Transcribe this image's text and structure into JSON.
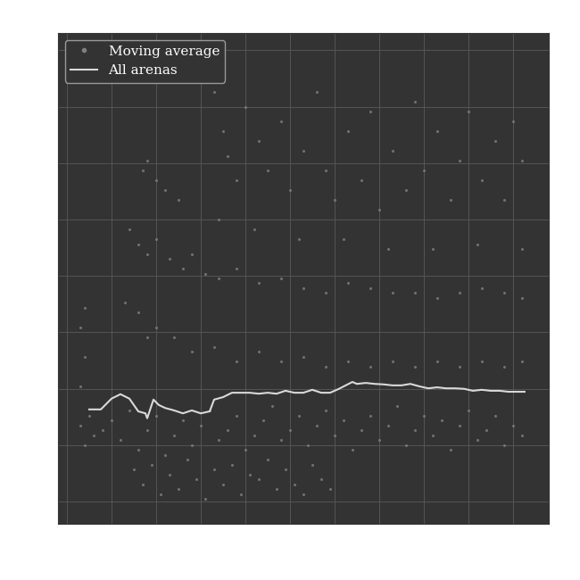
{
  "chart_data": {
    "type": "scatter",
    "xlim": [
      0,
      110
    ],
    "xticks": [
      2,
      12,
      22,
      32,
      42,
      52,
      62,
      72,
      82,
      92,
      102
    ],
    "ylim": [
      0,
      100
    ],
    "yticks": [
      4.5,
      16,
      27.5,
      39,
      50.5,
      62,
      73.5,
      85,
      96.5
    ],
    "grid": true,
    "tick_labels": false,
    "legend": "upper left",
    "series": [
      {
        "name": "Moving average",
        "type": "scatter",
        "color": "#808080",
        "marker": "o",
        "x": [
          5,
          6,
          7,
          8,
          10,
          12,
          14,
          16,
          18,
          20,
          22,
          24,
          26,
          28,
          30,
          32,
          34,
          36,
          38,
          40,
          42,
          44,
          46,
          48,
          50,
          52,
          54,
          56,
          58,
          60,
          62,
          64,
          66,
          68,
          70,
          72,
          74,
          76,
          78,
          80,
          82,
          84,
          86,
          88,
          90,
          92,
          94,
          96,
          98,
          100,
          102,
          104,
          17,
          19,
          21,
          23,
          25,
          27,
          29,
          31,
          33,
          35,
          37,
          39,
          41,
          43,
          45,
          47,
          49,
          51,
          53,
          55,
          57,
          59,
          61,
          20,
          30,
          40,
          50,
          60,
          70,
          80,
          90,
          100,
          104,
          15,
          18,
          22,
          26,
          35,
          45,
          55,
          65,
          75,
          85,
          95,
          5,
          6,
          5,
          6,
          16,
          18,
          20,
          22,
          25,
          28,
          30,
          33,
          36,
          40,
          45,
          50,
          55,
          60,
          65,
          70,
          75,
          80,
          85,
          90,
          95,
          100,
          104,
          20,
          22,
          19,
          24,
          27,
          35,
          37,
          38,
          40,
          42,
          45,
          47,
          50,
          52,
          55,
          58,
          60,
          62,
          65,
          68,
          70,
          72,
          75,
          78,
          80,
          82,
          85,
          88,
          90,
          92,
          95,
          98,
          100,
          102,
          104,
          36,
          44,
          54,
          64,
          74,
          84,
          94,
          104
        ],
        "values": [
          20,
          16,
          22,
          18,
          19,
          21,
          17,
          23,
          15,
          19,
          22,
          14,
          18,
          21,
          16,
          20,
          23,
          17,
          19,
          22,
          15,
          18,
          21,
          24,
          17,
          19,
          22,
          16,
          20,
          23,
          18,
          21,
          15,
          19,
          22,
          17,
          20,
          24,
          16,
          19,
          22,
          18,
          21,
          15,
          20,
          23,
          17,
          19,
          22,
          16,
          20,
          18,
          11,
          8,
          12,
          6,
          10,
          7,
          13,
          9,
          5,
          11,
          8,
          12,
          6,
          10,
          9,
          13,
          7,
          11,
          8,
          6,
          12,
          9,
          7,
          38,
          35,
          33,
          33,
          32,
          32,
          32,
          32,
          32,
          33,
          45,
          43,
          40,
          38,
          36,
          35,
          34,
          33,
          33,
          33,
          33,
          40,
          34,
          28,
          44,
          60,
          57,
          55,
          58,
          54,
          52,
          55,
          51,
          50,
          52,
          49,
          50,
          48,
          47,
          49,
          48,
          47,
          47,
          46,
          47,
          48,
          47,
          46,
          74,
          70,
          72,
          68,
          66,
          88,
          80,
          75,
          70,
          85,
          78,
          72,
          82,
          68,
          76,
          88,
          72,
          66,
          80,
          70,
          84,
          64,
          76,
          68,
          86,
          72,
          80,
          66,
          74,
          84,
          70,
          78,
          66,
          82,
          74,
          62,
          60,
          58,
          58,
          56,
          56,
          57,
          56
        ]
      },
      {
        "name": "All arenas",
        "type": "line",
        "color": "#d9d9d9",
        "line_style": "solid",
        "x": [
          7,
          9.6,
          12,
          14,
          16,
          18,
          19.6,
          20,
          21.4,
          22.6,
          24,
          26,
          28,
          30,
          32,
          34,
          35,
          37,
          39,
          41,
          43,
          45,
          47,
          49,
          51,
          53,
          55,
          57,
          59,
          61,
          63,
          66,
          67,
          69,
          71,
          73,
          75,
          77,
          79,
          81,
          83,
          85,
          87,
          89,
          91,
          93,
          95,
          97,
          99,
          101,
          104.6
        ],
        "values": [
          23.3,
          23.3,
          25.5,
          26.4,
          25.5,
          22.9,
          22.5,
          21.5,
          25.3,
          24.2,
          23.6,
          23.1,
          22.5,
          23.1,
          22.5,
          22.9,
          25.3,
          25.8,
          26.7,
          26.7,
          26.7,
          26.5,
          26.7,
          26.5,
          27.1,
          26.7,
          26.7,
          27.3,
          26.7,
          26.7,
          27.5,
          28.9,
          28.5,
          28.7,
          28.5,
          28.4,
          28.2,
          28.2,
          28.5,
          28.0,
          27.6,
          27.8,
          27.6,
          27.6,
          27.5,
          27.1,
          27.3,
          27.1,
          27.1,
          26.9,
          26.9
        ]
      }
    ]
  }
}
